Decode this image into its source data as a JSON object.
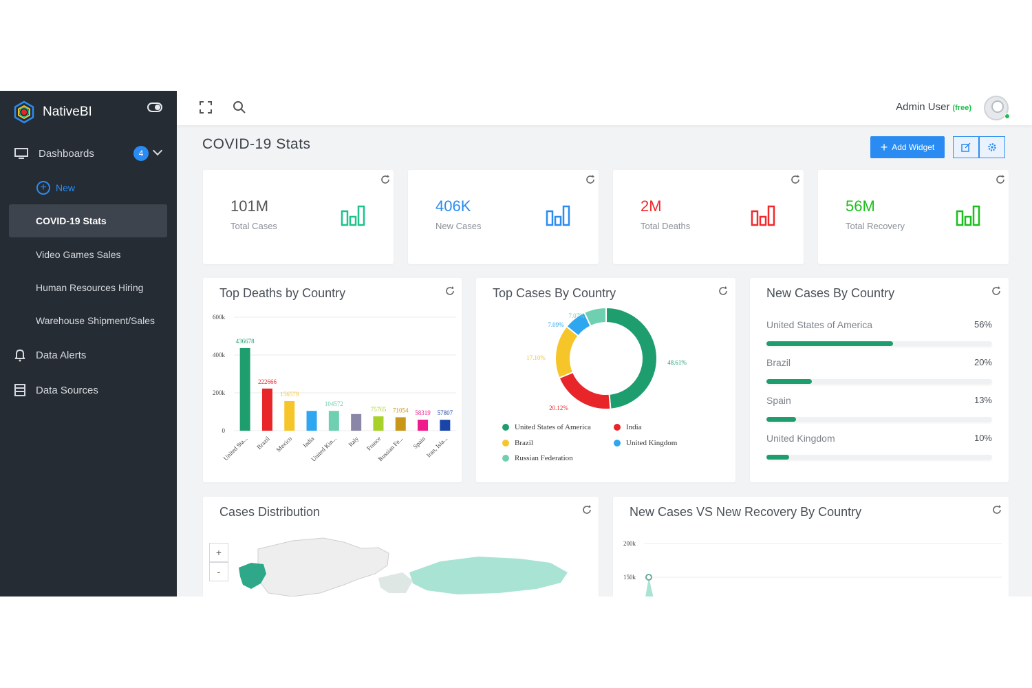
{
  "app": {
    "brand": "NativeBI"
  },
  "sidebar": {
    "dashboards_label": "Dashboards",
    "dashboards_badge": "4",
    "new_label": "New",
    "items": [
      {
        "label": "COVID-19 Stats"
      },
      {
        "label": "Video Games Sales"
      },
      {
        "label": "Human Resources Hiring"
      },
      {
        "label": "Warehouse Shipment/Sales"
      }
    ],
    "data_alerts_label": "Data Alerts",
    "data_sources_label": "Data Sources"
  },
  "topbar": {
    "user_name": "Admin User",
    "plan": "(free)"
  },
  "page": {
    "title": "COVID-19 Stats",
    "add_widget_label": "Add Widget"
  },
  "stats": [
    {
      "value": "101M",
      "label": "Total Cases",
      "color": "#1ec28b"
    },
    {
      "value": "406K",
      "label": "New Cases",
      "color": "#2a8bf2"
    },
    {
      "value": "2M",
      "label": "Total Deaths",
      "color": "#f2282c"
    },
    {
      "value": "56M",
      "label": "Total Recovery",
      "color": "#1bbf1b"
    }
  ],
  "widgets": {
    "deaths_title": "Top Deaths by Country",
    "cases_title": "Top Cases By Country",
    "new_cases_title": "New Cases By Country",
    "distribution_title": "Cases Distribution",
    "vs_title": "New Cases VS New Recovery By Country"
  },
  "new_cases_by_country": [
    {
      "country": "United States of America",
      "percent": "56%",
      "value": 56
    },
    {
      "country": "Brazil",
      "percent": "20%",
      "value": 20
    },
    {
      "country": "Spain",
      "percent": "13%",
      "value": 13
    },
    {
      "country": "United Kingdom",
      "percent": "10%",
      "value": 10
    }
  ],
  "map": {
    "zoom_in": "+",
    "zoom_out": "-"
  },
  "chart_data": [
    {
      "type": "bar",
      "title": "Top Deaths by Country",
      "categories": [
        "United Sta...",
        "Brazil",
        "Mexico",
        "India",
        "United Kin...",
        "Italy",
        "France",
        "Russian Fe...",
        "Spain",
        "Iran, Isla..."
      ],
      "values": [
        436678,
        222666,
        156579,
        104572,
        104572,
        88000,
        75765,
        71054,
        58319,
        57807
      ],
      "data_labels": [
        "436678",
        "222666",
        "156579",
        "",
        "104572",
        "",
        "75765",
        "71054",
        "58319",
        "57807"
      ],
      "colors": [
        "#1e9e6e",
        "#e8262a",
        "#f5c52a",
        "#2ea6f0",
        "#6fcfb1",
        "#8a86a8",
        "#a8d22a",
        "#c9961a",
        "#f01a8c",
        "#1a45a8"
      ],
      "yticks": [
        "0",
        "200k",
        "400k",
        "600k"
      ],
      "ylim": [
        0,
        600000
      ]
    },
    {
      "type": "pie",
      "title": "Top Cases By Country",
      "labels": [
        "United States of America",
        "India",
        "Brazil",
        "United Kingdom",
        "Russian Federation"
      ],
      "values": [
        48.61,
        20.12,
        17.1,
        7.09,
        7.07
      ],
      "value_labels": [
        "48.61%",
        "20.12%",
        "17.10%",
        "7.09%",
        "7.07%"
      ],
      "colors": [
        "#1e9e6e",
        "#e8262a",
        "#f5c52a",
        "#2ea6f0",
        "#6fcfb1"
      ]
    },
    {
      "type": "line",
      "title": "New Cases VS New Recovery By Country",
      "yticks": [
        "150k",
        "200k"
      ],
      "ylim": [
        100000,
        200000
      ],
      "series": [
        {
          "values": [
            150000
          ]
        }
      ]
    }
  ]
}
